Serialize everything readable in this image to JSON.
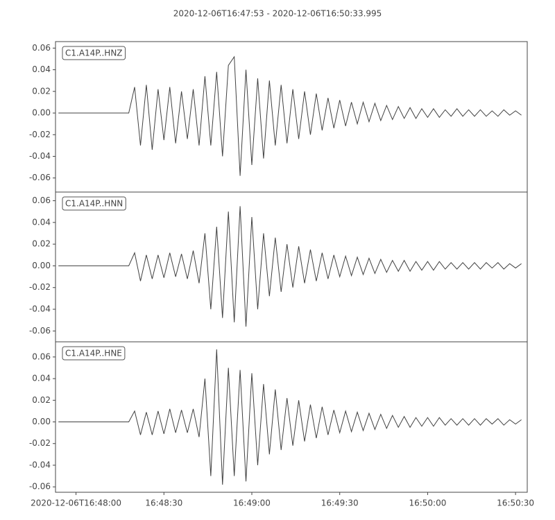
{
  "title": "2020-12-06T16:47:53  -  2020-12-06T16:50:33.995",
  "chart_data": [
    {
      "type": "line",
      "xlim": [
        "2020-12-06T16:47:53",
        "2020-12-06T16:50:33.995"
      ],
      "ylim": [
        -0.073,
        0.066
      ],
      "yticks": [
        -0.06,
        -0.04,
        -0.02,
        {
          "value": 0,
          "label": "0.00"
        },
        0.02,
        0.04,
        0.06
      ],
      "x": [
        "2020-12-06T16:47:54",
        "2020-12-06T16:47:56",
        "2020-12-06T16:47:58",
        "2020-12-06T16:48:00",
        "2020-12-06T16:48:02",
        "2020-12-06T16:48:04",
        "2020-12-06T16:48:06",
        "2020-12-06T16:48:08",
        "2020-12-06T16:48:10",
        "2020-12-06T16:48:12",
        "2020-12-06T16:48:14",
        "2020-12-06T16:48:16",
        "2020-12-06T16:48:18",
        "2020-12-06T16:48:20",
        "2020-12-06T16:48:22",
        "2020-12-06T16:48:24",
        "2020-12-06T16:48:26",
        "2020-12-06T16:48:28",
        "2020-12-06T16:48:30",
        "2020-12-06T16:48:32",
        "2020-12-06T16:48:34",
        "2020-12-06T16:48:36",
        "2020-12-06T16:48:38",
        "2020-12-06T16:48:40",
        "2020-12-06T16:48:42",
        "2020-12-06T16:48:44",
        "2020-12-06T16:48:46",
        "2020-12-06T16:48:48",
        "2020-12-06T16:48:50",
        "2020-12-06T16:48:52",
        "2020-12-06T16:48:54",
        "2020-12-06T16:48:56",
        "2020-12-06T16:48:58",
        "2020-12-06T16:49:00",
        "2020-12-06T16:49:02",
        "2020-12-06T16:49:04",
        "2020-12-06T16:49:06",
        "2020-12-06T16:49:08",
        "2020-12-06T16:49:10",
        "2020-12-06T16:49:12",
        "2020-12-06T16:49:14",
        "2020-12-06T16:49:16",
        "2020-12-06T16:49:18",
        "2020-12-06T16:49:20",
        "2020-12-06T16:49:22",
        "2020-12-06T16:49:24",
        "2020-12-06T16:49:26",
        "2020-12-06T16:49:28",
        "2020-12-06T16:49:30",
        "2020-12-06T16:49:32",
        "2020-12-06T16:49:34",
        "2020-12-06T16:49:36",
        "2020-12-06T16:49:38",
        "2020-12-06T16:49:40",
        "2020-12-06T16:49:42",
        "2020-12-06T16:49:44",
        "2020-12-06T16:49:46",
        "2020-12-06T16:49:48",
        "2020-12-06T16:49:50",
        "2020-12-06T16:49:52",
        "2020-12-06T16:49:54",
        "2020-12-06T16:49:56",
        "2020-12-06T16:49:58",
        "2020-12-06T16:50:00",
        "2020-12-06T16:50:02",
        "2020-12-06T16:50:04",
        "2020-12-06T16:50:06",
        "2020-12-06T16:50:08",
        "2020-12-06T16:50:10",
        "2020-12-06T16:50:12",
        "2020-12-06T16:50:14",
        "2020-12-06T16:50:16",
        "2020-12-06T16:50:18",
        "2020-12-06T16:50:20",
        "2020-12-06T16:50:22",
        "2020-12-06T16:50:24",
        "2020-12-06T16:50:26",
        "2020-12-06T16:50:28",
        "2020-12-06T16:50:30",
        "2020-12-06T16:50:32"
      ],
      "series": [
        {
          "name": "C1.A14P..HNZ",
          "color": "#404040",
          "values": [
            0,
            0,
            0,
            0,
            0,
            0,
            0,
            0,
            0,
            0,
            0,
            0,
            0,
            0.024,
            -0.03,
            0.026,
            -0.034,
            0.022,
            -0.025,
            0.024,
            -0.028,
            0.02,
            -0.024,
            0.022,
            -0.03,
            0.034,
            -0.03,
            0.038,
            -0.04,
            0.044,
            0.052,
            -0.058,
            0.04,
            -0.048,
            0.032,
            -0.042,
            0.03,
            -0.03,
            0.026,
            -0.028,
            0.022,
            -0.024,
            0.02,
            -0.02,
            0.018,
            -0.016,
            0.014,
            -0.014,
            0.012,
            -0.012,
            0.01,
            -0.01,
            0.01,
            -0.008,
            0.009,
            -0.007,
            0.007,
            -0.006,
            0.006,
            -0.005,
            0.005,
            -0.005,
            0.004,
            -0.004,
            0.004,
            -0.004,
            0.003,
            -0.003,
            0.004,
            -0.003,
            0.003,
            -0.003,
            0.003,
            -0.003,
            0.002,
            -0.003,
            0.003,
            -0.002,
            0.002,
            -0.002
          ]
        }
      ]
    },
    {
      "type": "line",
      "xlim": [
        "2020-12-06T16:47:53",
        "2020-12-06T16:50:33.995"
      ],
      "ylim": [
        -0.07,
        0.068
      ],
      "yticks": [
        -0.06,
        -0.04,
        -0.02,
        {
          "value": 0,
          "label": "0.00"
        },
        0.02,
        0.04,
        0.06
      ],
      "x": [
        "2020-12-06T16:47:54",
        "2020-12-06T16:47:56",
        "2020-12-06T16:47:58",
        "2020-12-06T16:48:00",
        "2020-12-06T16:48:02",
        "2020-12-06T16:48:04",
        "2020-12-06T16:48:06",
        "2020-12-06T16:48:08",
        "2020-12-06T16:48:10",
        "2020-12-06T16:48:12",
        "2020-12-06T16:48:14",
        "2020-12-06T16:48:16",
        "2020-12-06T16:48:18",
        "2020-12-06T16:48:20",
        "2020-12-06T16:48:22",
        "2020-12-06T16:48:24",
        "2020-12-06T16:48:26",
        "2020-12-06T16:48:28",
        "2020-12-06T16:48:30",
        "2020-12-06T16:48:32",
        "2020-12-06T16:48:34",
        "2020-12-06T16:48:36",
        "2020-12-06T16:48:38",
        "2020-12-06T16:48:40",
        "2020-12-06T16:48:42",
        "2020-12-06T16:48:44",
        "2020-12-06T16:48:46",
        "2020-12-06T16:48:48",
        "2020-12-06T16:48:50",
        "2020-12-06T16:48:52",
        "2020-12-06T16:48:54",
        "2020-12-06T16:48:56",
        "2020-12-06T16:48:58",
        "2020-12-06T16:49:00",
        "2020-12-06T16:49:02",
        "2020-12-06T16:49:04",
        "2020-12-06T16:49:06",
        "2020-12-06T16:49:08",
        "2020-12-06T16:49:10",
        "2020-12-06T16:49:12",
        "2020-12-06T16:49:14",
        "2020-12-06T16:49:16",
        "2020-12-06T16:49:18",
        "2020-12-06T16:49:20",
        "2020-12-06T16:49:22",
        "2020-12-06T16:49:24",
        "2020-12-06T16:49:26",
        "2020-12-06T16:49:28",
        "2020-12-06T16:49:30",
        "2020-12-06T16:49:32",
        "2020-12-06T16:49:34",
        "2020-12-06T16:49:36",
        "2020-12-06T16:49:38",
        "2020-12-06T16:49:40",
        "2020-12-06T16:49:42",
        "2020-12-06T16:49:44",
        "2020-12-06T16:49:46",
        "2020-12-06T16:49:48",
        "2020-12-06T16:49:50",
        "2020-12-06T16:49:52",
        "2020-12-06T16:49:54",
        "2020-12-06T16:49:56",
        "2020-12-06T16:49:58",
        "2020-12-06T16:50:00",
        "2020-12-06T16:50:02",
        "2020-12-06T16:50:04",
        "2020-12-06T16:50:06",
        "2020-12-06T16:50:08",
        "2020-12-06T16:50:10",
        "2020-12-06T16:50:12",
        "2020-12-06T16:50:14",
        "2020-12-06T16:50:16",
        "2020-12-06T16:50:18",
        "2020-12-06T16:50:20",
        "2020-12-06T16:50:22",
        "2020-12-06T16:50:24",
        "2020-12-06T16:50:26",
        "2020-12-06T16:50:28",
        "2020-12-06T16:50:30",
        "2020-12-06T16:50:32"
      ],
      "series": [
        {
          "name": "C1.A14P..HNN",
          "color": "#404040",
          "values": [
            0,
            0,
            0,
            0,
            0,
            0,
            0,
            0,
            0,
            0,
            0,
            0,
            0,
            0.012,
            -0.014,
            0.01,
            -0.012,
            0.01,
            -0.011,
            0.012,
            -0.01,
            0.011,
            -0.012,
            0.014,
            -0.016,
            0.03,
            -0.04,
            0.036,
            -0.048,
            0.05,
            -0.052,
            0.055,
            -0.056,
            0.045,
            -0.04,
            0.03,
            -0.028,
            0.026,
            -0.024,
            0.02,
            -0.02,
            0.018,
            -0.016,
            0.015,
            -0.014,
            0.012,
            -0.012,
            0.01,
            -0.01,
            0.009,
            -0.009,
            0.008,
            -0.008,
            0.007,
            -0.007,
            0.006,
            -0.006,
            0.005,
            -0.005,
            0.005,
            -0.005,
            0.004,
            -0.004,
            0.004,
            -0.004,
            0.004,
            -0.003,
            0.003,
            -0.003,
            0.003,
            -0.003,
            0.003,
            -0.003,
            0.003,
            -0.002,
            0.003,
            -0.003,
            0.002,
            -0.002,
            0.002
          ]
        }
      ]
    },
    {
      "type": "line",
      "xlim": [
        "2020-12-06T16:47:53",
        "2020-12-06T16:50:33.995"
      ],
      "ylim": [
        -0.065,
        0.074
      ],
      "yticks": [
        -0.06,
        -0.04,
        -0.02,
        {
          "value": 0,
          "label": "0.00"
        },
        0.02,
        0.04,
        0.06
      ],
      "xticks": [
        "2020-12-06T16:48:00",
        {
          "value": "2020-12-06T16:48:30",
          "label": "16:48:30"
        },
        {
          "value": "2020-12-06T16:49:00",
          "label": "16:49:00"
        },
        {
          "value": "2020-12-06T16:49:30",
          "label": "16:49:30"
        },
        {
          "value": "2020-12-06T16:50:00",
          "label": "16:50:00"
        },
        {
          "value": "2020-12-06T16:50:30",
          "label": "16:50:30"
        }
      ],
      "x": [
        "2020-12-06T16:47:54",
        "2020-12-06T16:47:56",
        "2020-12-06T16:47:58",
        "2020-12-06T16:48:00",
        "2020-12-06T16:48:02",
        "2020-12-06T16:48:04",
        "2020-12-06T16:48:06",
        "2020-12-06T16:48:08",
        "2020-12-06T16:48:10",
        "2020-12-06T16:48:12",
        "2020-12-06T16:48:14",
        "2020-12-06T16:48:16",
        "2020-12-06T16:48:18",
        "2020-12-06T16:48:20",
        "2020-12-06T16:48:22",
        "2020-12-06T16:48:24",
        "2020-12-06T16:48:26",
        "2020-12-06T16:48:28",
        "2020-12-06T16:48:30",
        "2020-12-06T16:48:32",
        "2020-12-06T16:48:34",
        "2020-12-06T16:48:36",
        "2020-12-06T16:48:38",
        "2020-12-06T16:48:40",
        "2020-12-06T16:48:42",
        "2020-12-06T16:48:44",
        "2020-12-06T16:48:46",
        "2020-12-06T16:48:48",
        "2020-12-06T16:48:50",
        "2020-12-06T16:48:52",
        "2020-12-06T16:48:54",
        "2020-12-06T16:48:56",
        "2020-12-06T16:48:58",
        "2020-12-06T16:49:00",
        "2020-12-06T16:49:02",
        "2020-12-06T16:49:04",
        "2020-12-06T16:49:06",
        "2020-12-06T16:49:08",
        "2020-12-06T16:49:10",
        "2020-12-06T16:49:12",
        "2020-12-06T16:49:14",
        "2020-12-06T16:49:16",
        "2020-12-06T16:49:18",
        "2020-12-06T16:49:20",
        "2020-12-06T16:49:22",
        "2020-12-06T16:49:24",
        "2020-12-06T16:49:26",
        "2020-12-06T16:49:28",
        "2020-12-06T16:49:30",
        "2020-12-06T16:49:32",
        "2020-12-06T16:49:34",
        "2020-12-06T16:49:36",
        "2020-12-06T16:49:38",
        "2020-12-06T16:49:40",
        "2020-12-06T16:49:42",
        "2020-12-06T16:49:44",
        "2020-12-06T16:49:46",
        "2020-12-06T16:49:48",
        "2020-12-06T16:49:50",
        "2020-12-06T16:49:52",
        "2020-12-06T16:49:54",
        "2020-12-06T16:49:56",
        "2020-12-06T16:49:58",
        "2020-12-06T16:50:00",
        "2020-12-06T16:50:02",
        "2020-12-06T16:50:04",
        "2020-12-06T16:50:06",
        "2020-12-06T16:50:08",
        "2020-12-06T16:50:10",
        "2020-12-06T16:50:12",
        "2020-12-06T16:50:14",
        "2020-12-06T16:50:16",
        "2020-12-06T16:50:18",
        "2020-12-06T16:50:20",
        "2020-12-06T16:50:22",
        "2020-12-06T16:50:24",
        "2020-12-06T16:50:26",
        "2020-12-06T16:50:28",
        "2020-12-06T16:50:30",
        "2020-12-06T16:50:32"
      ],
      "series": [
        {
          "name": "C1.A14P..HNE",
          "color": "#404040",
          "values": [
            0,
            0,
            0,
            0,
            0,
            0,
            0,
            0,
            0,
            0,
            0,
            0,
            0,
            0.01,
            -0.012,
            0.009,
            -0.012,
            0.01,
            -0.011,
            0.012,
            -0.01,
            0.011,
            -0.01,
            0.012,
            -0.014,
            0.04,
            -0.05,
            0.067,
            -0.058,
            0.05,
            -0.05,
            0.048,
            -0.055,
            0.045,
            -0.04,
            0.035,
            -0.03,
            0.03,
            -0.026,
            0.022,
            -0.022,
            0.02,
            -0.018,
            0.016,
            -0.015,
            0.014,
            -0.012,
            0.011,
            -0.01,
            0.01,
            -0.009,
            0.009,
            -0.008,
            0.008,
            -0.007,
            0.007,
            -0.006,
            0.006,
            -0.005,
            0.005,
            -0.005,
            0.004,
            -0.004,
            0.004,
            -0.004,
            0.004,
            -0.003,
            0.003,
            -0.003,
            0.003,
            -0.003,
            0.003,
            -0.003,
            0.003,
            -0.002,
            0.003,
            -0.003,
            0.002,
            -0.002,
            0.002
          ]
        }
      ]
    }
  ]
}
